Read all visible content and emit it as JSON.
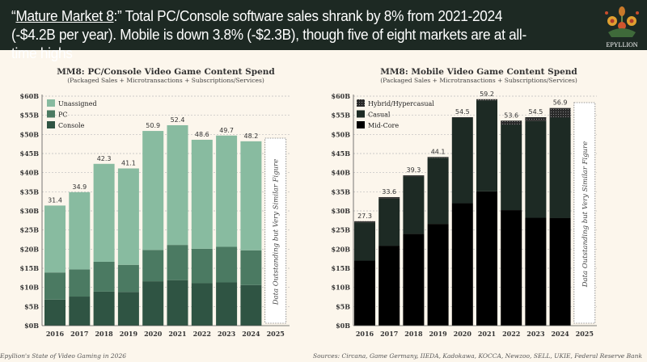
{
  "header": {
    "title_underlined": "Mature Market 8",
    "title_open_quote": "“",
    "title_rest": ":” Total PC/Console software sales shrank by 8% from 2021-2024 (-$4.2B per year). Mobile is down 3.8% (-$2.3B), though five of eight markets are at all-time highs",
    "logo_text": "EPYLLION"
  },
  "footer": {
    "left": "Epyllion's State of Video Gaming in 2026",
    "right": "Sources: Circana, Game Germany, IIEDA, Kadokawa, KOCCA, Newzoo, SELL, UKIE, Federal Reserve Bank"
  },
  "chart_data": [
    {
      "type": "bar",
      "stacked": true,
      "title": "MM8: PC/Console Video Game Content Spend",
      "subtitle": "(Packaged Sales + Microtransactions + Subscriptions/Services)",
      "categories": [
        "2016",
        "2017",
        "2018",
        "2019",
        "2020",
        "2021",
        "2022",
        "2023",
        "2024",
        "2025"
      ],
      "yticks": [
        "$0B",
        "$5B",
        "$10B",
        "$15B",
        "$20B",
        "$25B",
        "$30B",
        "$35B",
        "$40B",
        "$45B",
        "$50B",
        "$55B",
        "$60B"
      ],
      "ylim": [
        0,
        60
      ],
      "grid": true,
      "legend": "top-left",
      "series": [
        {
          "name": "Console",
          "color": "#2f5443",
          "values": [
            6.8,
            7.6,
            8.9,
            8.8,
            11.6,
            11.9,
            11.1,
            11.3,
            10.6,
            null
          ]
        },
        {
          "name": "PC",
          "color": "#4b7a62",
          "values": [
            7.1,
            7.1,
            7.8,
            7.1,
            8.2,
            9.2,
            9.0,
            9.3,
            9.1,
            null
          ]
        },
        {
          "name": "Unassigned",
          "color": "#88bba0",
          "values": [
            17.5,
            20.2,
            25.6,
            25.2,
            31.1,
            31.3,
            28.5,
            29.1,
            28.5,
            null
          ]
        }
      ],
      "totals": [
        "31.4",
        "34.9",
        "42.3",
        "41.1",
        "50.9",
        "52.4",
        "48.6",
        "49.7",
        "48.2",
        null
      ],
      "placeholder_note": "Data Outstanding but Very Similar Figure"
    },
    {
      "type": "bar",
      "stacked": true,
      "title": "MM8: Mobile Video Game Content Spend",
      "subtitle": "(Packaged Sales + Microtransactions + Subscriptions/Services)",
      "categories": [
        "2016",
        "2017",
        "2018",
        "2019",
        "2020",
        "2021",
        "2022",
        "2023",
        "2024",
        "2025"
      ],
      "yticks": [
        "$0B",
        "$5B",
        "$10B",
        "$15B",
        "$20B",
        "$25B",
        "$30B",
        "$35B",
        "$40B",
        "$45B",
        "$50B",
        "$55B",
        "$60B"
      ],
      "ylim": [
        0,
        60
      ],
      "grid": true,
      "legend": "top-left",
      "series": [
        {
          "name": "Mid-Core",
          "color": "#000000",
          "values": [
            17.0,
            20.9,
            24.0,
            26.6,
            32.0,
            35.1,
            30.2,
            28.2,
            28.1,
            null
          ]
        },
        {
          "name": "Casual",
          "color": "#1d2a24",
          "values": [
            10.0,
            12.3,
            15.0,
            17.3,
            22.3,
            23.8,
            22.4,
            25.3,
            26.3,
            null
          ]
        },
        {
          "name": "Hybrid/Hypercasual",
          "color": "#3a3a3a",
          "values": [
            0.3,
            0.4,
            0.3,
            0.2,
            0.2,
            0.3,
            1.0,
            1.0,
            2.5,
            null
          ]
        }
      ],
      "totals": [
        "27.3",
        "33.6",
        "39.3",
        "44.1",
        "54.5",
        "59.2",
        "53.6",
        "54.5",
        "56.9",
        null
      ],
      "placeholder_note": "Data Outstanding but Very Similar Figure"
    }
  ]
}
